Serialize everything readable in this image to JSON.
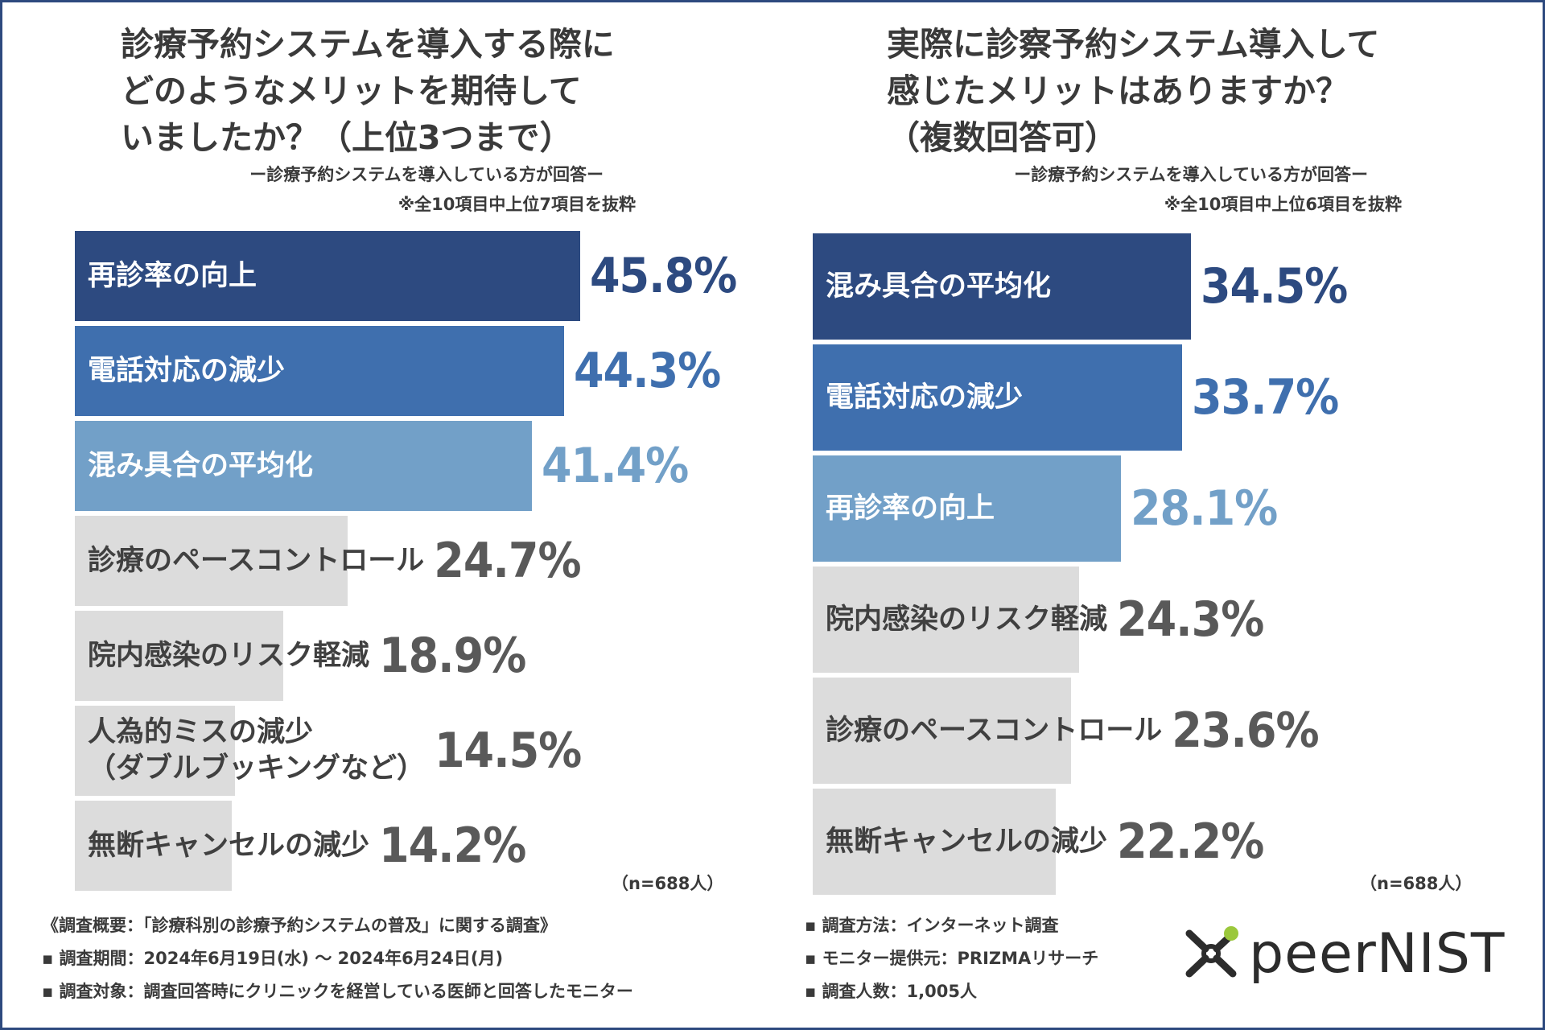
{
  "colors": {
    "rank1": "#2d4a80",
    "rank2": "#3f6fae",
    "rank3": "#72a0c8",
    "other": "#dcdcdc",
    "other_text": "#595959",
    "label_light": "#ffffff",
    "label_dark": "#404040",
    "frame": "#2e4a7e"
  },
  "left": {
    "title_lines": [
      "診療予約システムを導入する際に",
      "どのようなメリットを期待して",
      "いましたか？（上位3つまで）"
    ],
    "subtitle1": "ー診療予約システムを導入している方が回答ー",
    "subtitle2": "※全10項目中上位7項目を抜粋",
    "n_note": "（n=688人）"
  },
  "right": {
    "title_lines": [
      "実際に診察予約システム導入して",
      "感じたメリットはありますか？",
      "（複数回答可）"
    ],
    "subtitle1": "ー診療予約システムを導入している方が回答ー",
    "subtitle2": "※全10項目中上位6項目を抜粋",
    "n_note": "（n=688人）"
  },
  "chart_data": [
    {
      "type": "bar",
      "orientation": "horizontal",
      "title": "診療予約システムを導入する際にどのようなメリットを期待していましたか？（上位3つまで）",
      "unit": "%",
      "xlim": [
        0,
        50
      ],
      "categories": [
        "再診率の向上",
        "電話対応の減少",
        "混み具合の平均化",
        "診療のペースコントロール",
        "院内感染のリスク軽減",
        "人為的ミスの減少\n（ダブルブッキングなど）",
        "無断キャンセルの減少"
      ],
      "values": [
        45.8,
        44.3,
        41.4,
        24.7,
        18.9,
        14.5,
        14.2
      ],
      "value_labels": [
        "45.8%",
        "44.3%",
        "41.4%",
        "24.7%",
        "18.9%",
        "14.5%",
        "14.2%"
      ]
    },
    {
      "type": "bar",
      "orientation": "horizontal",
      "title": "実際に診察予約システム導入して感じたメリットはありますか？（複数回答可）",
      "unit": "%",
      "xlim": [
        0,
        50
      ],
      "categories": [
        "混み具合の平均化",
        "電話対応の減少",
        "再診率の向上",
        "院内感染のリスク軽減",
        "診療のペースコントロール",
        "無断キャンセルの減少"
      ],
      "values": [
        34.5,
        33.7,
        28.1,
        24.3,
        23.6,
        22.2
      ],
      "value_labels": [
        "34.5%",
        "33.7%",
        "28.1%",
        "24.3%",
        "23.6%",
        "22.2%"
      ]
    }
  ],
  "footer": {
    "left_lines": [
      "《調査概要：「診療科別の診療予約システムの普及」に関する調査》",
      "▪ 調査期間：2024年6月19日(水) 〜 2024年6月24日(月)",
      "▪ 調査対象：調査回答時にクリニックを経営している医師と回答したモニター"
    ],
    "right_lines": [
      "▪ 調査方法：インターネット調査",
      "▪ モニター提供元：PRIZMAリサーチ",
      "▪ 調査人数：1,005人"
    ]
  },
  "logo": {
    "text": "peerNIST",
    "icon": "peernist-x-icon"
  }
}
